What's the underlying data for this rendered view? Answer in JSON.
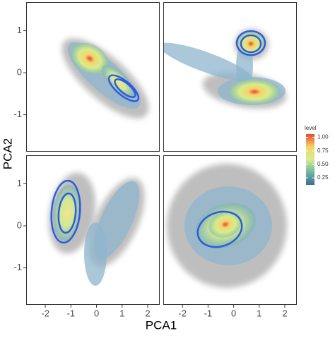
{
  "chart_data": {
    "type": "density",
    "xlabel": "PCA1",
    "ylabel": "PCA2",
    "xlim": [
      -2.75,
      2.47
    ],
    "xticks": [
      -2,
      -1,
      0,
      1,
      2
    ],
    "ylim": [
      -1.88,
      1.68
    ],
    "yticks": [
      -1,
      0,
      1
    ],
    "legend": {
      "title": "level",
      "lim": [
        0.12,
        1.06
      ],
      "ticks": [
        0.25,
        {
          "value": 0.5,
          "label": "0.50"
        },
        0.75,
        {
          "value": 1,
          "label": "1.00"
        }
      ],
      "colors": [
        "#3b6e9c",
        "#6fb7a0",
        "#d8ec8c",
        "#f6d26a",
        "#e34a33"
      ]
    }
  }
}
